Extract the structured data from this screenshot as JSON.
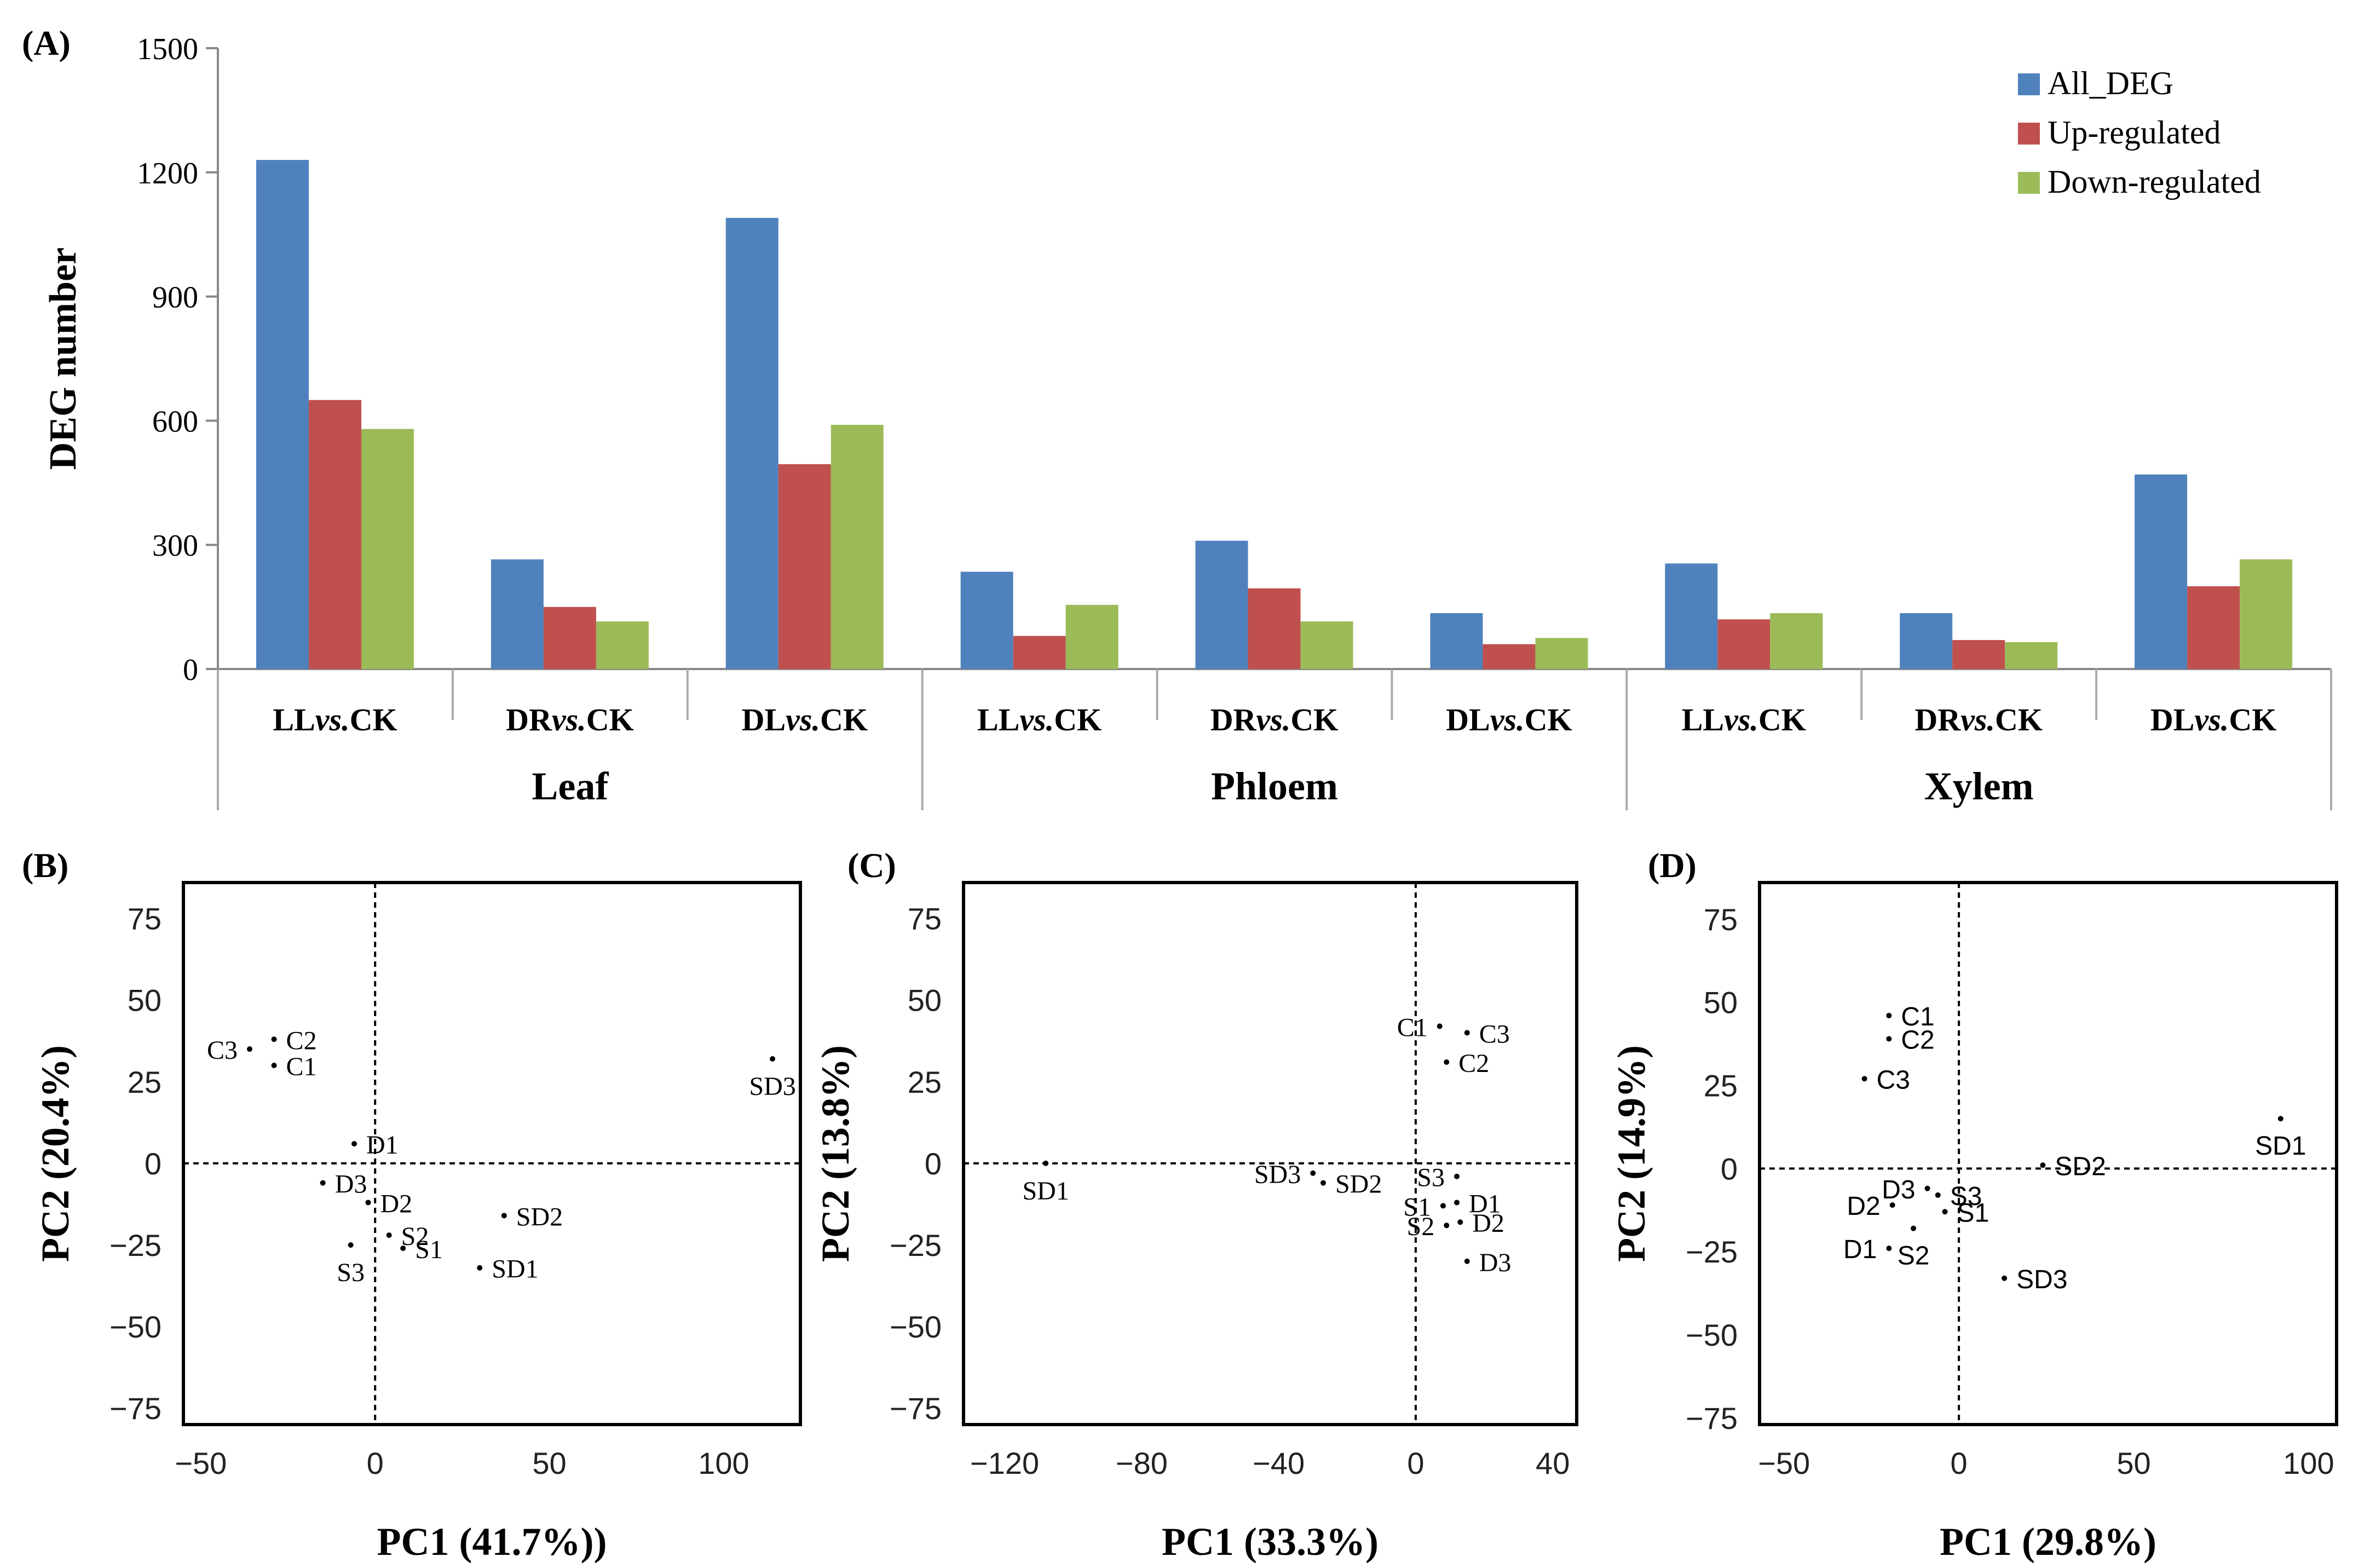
{
  "chart_data": [
    {
      "panel": "(A)",
      "type": "bar",
      "ylabel": "DEG number",
      "ylim": [
        0,
        1500
      ],
      "yticks": [
        0,
        300,
        600,
        900,
        1200,
        1500
      ],
      "categories": [
        {
          "pre": "LL",
          "vs": "vs.",
          "post": "CK",
          "group": "Leaf"
        },
        {
          "pre": "DR",
          "vs": "vs.",
          "post": "CK",
          "group": "Leaf"
        },
        {
          "pre": "DL",
          "vs": "vs.",
          "post": "CK",
          "group": "Leaf"
        },
        {
          "pre": "LL",
          "vs": "vs.",
          "post": "CK",
          "group": "Phloem"
        },
        {
          "pre": "DR",
          "vs": "vs.",
          "post": "CK",
          "group": "Phloem"
        },
        {
          "pre": "DL",
          "vs": "vs.",
          "post": "CK",
          "group": "Phloem"
        },
        {
          "pre": "LL",
          "vs": "vs.",
          "post": "CK",
          "group": "Xylem"
        },
        {
          "pre": "DR",
          "vs": "vs.",
          "post": "CK",
          "group": "Xylem"
        },
        {
          "pre": "DL",
          "vs": "vs.",
          "post": "CK",
          "group": "Xylem"
        }
      ],
      "groups": [
        "Leaf",
        "Phloem",
        "Xylem"
      ],
      "series": [
        {
          "name": "All_DEG",
          "color": "#4f81bd",
          "values": [
            1230,
            265,
            1090,
            235,
            310,
            135,
            255,
            135,
            470
          ]
        },
        {
          "name": "Up-regulated",
          "color": "#c0504d",
          "values": [
            650,
            150,
            495,
            80,
            195,
            60,
            120,
            70,
            200
          ]
        },
        {
          "name": "Down-regulated",
          "color": "#9bbb59",
          "values": [
            580,
            115,
            590,
            155,
            115,
            75,
            135,
            65,
            265
          ]
        }
      ],
      "legend": "top-right",
      "grid": false
    },
    {
      "panel": "(B)",
      "type": "scatter",
      "xlabel": "PC1  (41.7%))",
      "ylabel": "PC2  (20.4%)",
      "xlim": [
        -55,
        122
      ],
      "ylim": [
        -80,
        86
      ],
      "xticks": [
        -50,
        0,
        50,
        100
      ],
      "yticks": [
        75,
        50,
        25,
        0,
        -25,
        -50,
        -75
      ],
      "points": [
        {
          "label": "C2",
          "x": -29,
          "y": 38,
          "lpos": "right"
        },
        {
          "label": "C3",
          "x": -36,
          "y": 35,
          "lpos": "left"
        },
        {
          "label": "C1",
          "x": -29,
          "y": 30,
          "lpos": "right"
        },
        {
          "label": "D1",
          "x": -6,
          "y": 6,
          "lpos": "right"
        },
        {
          "label": "D3",
          "x": -15,
          "y": -6,
          "lpos": "right"
        },
        {
          "label": "D2",
          "x": -2,
          "y": -12,
          "lpos": "right"
        },
        {
          "label": "S2",
          "x": 4,
          "y": -22,
          "lpos": "right"
        },
        {
          "label": "S1",
          "x": 8,
          "y": -26,
          "lpos": "right"
        },
        {
          "label": "S3",
          "x": -7,
          "y": -25,
          "lpos": "below"
        },
        {
          "label": "SD2",
          "x": 37,
          "y": -16,
          "lpos": "right"
        },
        {
          "label": "SD1",
          "x": 30,
          "y": -32,
          "lpos": "right"
        },
        {
          "label": "SD3",
          "x": 114,
          "y": 32,
          "lpos": "below"
        }
      ]
    },
    {
      "panel": "(C)",
      "type": "scatter",
      "xlabel": "PC1  (33.3%)",
      "ylabel": "PC2  (13.8%)",
      "xlim": [
        -132,
        47
      ],
      "ylim": [
        -80,
        86
      ],
      "xticks": [
        -120,
        -80,
        -40,
        0,
        40
      ],
      "yticks": [
        75,
        50,
        25,
        0,
        -25,
        -50,
        -75
      ],
      "points": [
        {
          "label": "C1",
          "x": 7,
          "y": 42,
          "lpos": "left"
        },
        {
          "label": "C3",
          "x": 15,
          "y": 40,
          "lpos": "right"
        },
        {
          "label": "C2",
          "x": 9,
          "y": 31,
          "lpos": "right"
        },
        {
          "label": "SD1",
          "x": -108,
          "y": 0,
          "lpos": "below"
        },
        {
          "label": "SD3",
          "x": -30,
          "y": -3,
          "lpos": "left"
        },
        {
          "label": "SD2",
          "x": -27,
          "y": -6,
          "lpos": "right"
        },
        {
          "label": "S3",
          "x": 12,
          "y": -4,
          "lpos": "left"
        },
        {
          "label": "D1",
          "x": 12,
          "y": -12,
          "lpos": "right"
        },
        {
          "label": "S1",
          "x": 8,
          "y": -13,
          "lpos": "left"
        },
        {
          "label": "D2",
          "x": 13,
          "y": -18,
          "lpos": "right"
        },
        {
          "label": "S2",
          "x": 9,
          "y": -19,
          "lpos": "left"
        },
        {
          "label": "D3",
          "x": 15,
          "y": -30,
          "lpos": "right"
        }
      ]
    },
    {
      "panel": "(D)",
      "type": "scatter",
      "xlabel": "PC1  (29.8%)",
      "ylabel": "PC2  (14.9%)",
      "xlim": [
        -57,
        108
      ],
      "ylim": [
        -77,
        86
      ],
      "xticks": [
        -50,
        0,
        50,
        100
      ],
      "yticks": [
        75,
        50,
        25,
        0,
        -25,
        -50,
        -75
      ],
      "points": [
        {
          "label": "C1",
          "x": -20,
          "y": 46,
          "lpos": "right"
        },
        {
          "label": "C2",
          "x": -20,
          "y": 39,
          "lpos": "right"
        },
        {
          "label": "C3",
          "x": -27,
          "y": 27,
          "lpos": "right"
        },
        {
          "label": "SD1",
          "x": 92,
          "y": 15,
          "lpos": "below"
        },
        {
          "label": "SD2",
          "x": 24,
          "y": 1,
          "lpos": "right"
        },
        {
          "label": "D3",
          "x": -9,
          "y": -6,
          "lpos": "left"
        },
        {
          "label": "S3",
          "x": -6,
          "y": -8,
          "lpos": "right"
        },
        {
          "label": "D2",
          "x": -19,
          "y": -11,
          "lpos": "left"
        },
        {
          "label": "S1",
          "x": -4,
          "y": -13,
          "lpos": "right"
        },
        {
          "label": "S2",
          "x": -13,
          "y": -18,
          "lpos": "below"
        },
        {
          "label": "D1",
          "x": -20,
          "y": -24,
          "lpos": "left"
        },
        {
          "label": "SD3",
          "x": 13,
          "y": -33,
          "lpos": "right"
        }
      ]
    }
  ]
}
